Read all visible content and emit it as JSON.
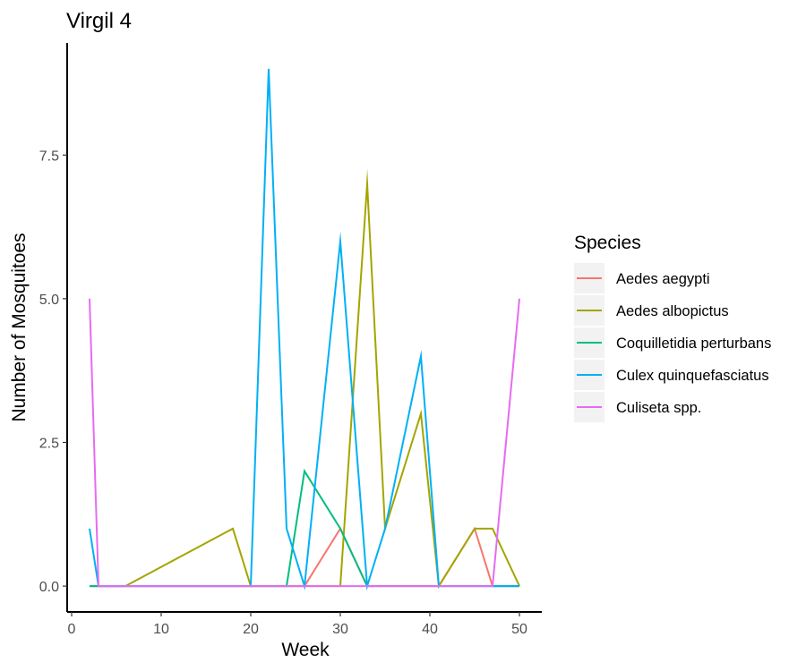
{
  "chart_data": {
    "type": "line",
    "title": "Virgil 4",
    "xlabel": "Week",
    "ylabel": "Number of Mosquitoes",
    "xlim": [
      -0.5,
      52.5
    ],
    "ylim": [
      -0.45,
      9.45
    ],
    "x_ticks": [
      0,
      10,
      20,
      30,
      40,
      50
    ],
    "x_tick_labels": [
      "0",
      "10",
      "20",
      "30",
      "40",
      "50"
    ],
    "y_ticks": [
      0,
      2.5,
      5,
      7.5
    ],
    "y_tick_labels": [
      "0.0",
      "2.5",
      "5.0",
      "7.5"
    ],
    "grid": false,
    "legend": {
      "title": "Species",
      "placement": "right"
    },
    "series": [
      {
        "name": "Aedes aegypti",
        "color": "#F8766D",
        "points": [
          [
            2,
            0
          ],
          [
            3,
            0
          ],
          [
            6,
            0
          ],
          [
            18,
            0
          ],
          [
            20,
            0
          ],
          [
            22,
            0
          ],
          [
            24,
            0
          ],
          [
            26,
            0
          ],
          [
            30,
            1
          ],
          [
            33,
            0
          ],
          [
            35,
            0
          ],
          [
            39,
            0
          ],
          [
            41,
            0
          ],
          [
            45,
            1
          ],
          [
            47,
            0
          ],
          [
            50,
            0
          ]
        ]
      },
      {
        "name": "Aedes albopictus",
        "color": "#A3A500",
        "points": [
          [
            2,
            0
          ],
          [
            3,
            0
          ],
          [
            6,
            0
          ],
          [
            18,
            1
          ],
          [
            20,
            0
          ],
          [
            22,
            0
          ],
          [
            24,
            0
          ],
          [
            26,
            0
          ],
          [
            30,
            0
          ],
          [
            33,
            7
          ],
          [
            35,
            1
          ],
          [
            39,
            3
          ],
          [
            41,
            0
          ],
          [
            45,
            1
          ],
          [
            47,
            1
          ],
          [
            50,
            0
          ]
        ]
      },
      {
        "name": "Coquilletidia perturbans",
        "color": "#00BF7D",
        "points": [
          [
            2,
            0
          ],
          [
            3,
            0
          ],
          [
            6,
            0
          ],
          [
            18,
            0
          ],
          [
            20,
            0
          ],
          [
            22,
            0
          ],
          [
            24,
            0
          ],
          [
            26,
            2
          ],
          [
            30,
            1
          ],
          [
            33,
            0
          ],
          [
            35,
            0
          ],
          [
            39,
            0
          ],
          [
            41,
            0
          ],
          [
            45,
            0
          ],
          [
            47,
            0
          ],
          [
            50,
            0
          ]
        ]
      },
      {
        "name": "Culex quinquefasciatus",
        "color": "#00B0F6",
        "points": [
          [
            2,
            1
          ],
          [
            3,
            0
          ],
          [
            6,
            0
          ],
          [
            18,
            0
          ],
          [
            20,
            0
          ],
          [
            22,
            9
          ],
          [
            24,
            1
          ],
          [
            26,
            0
          ],
          [
            30,
            6
          ],
          [
            33,
            0
          ],
          [
            35,
            1
          ],
          [
            39,
            4
          ],
          [
            41,
            0
          ],
          [
            45,
            0
          ],
          [
            47,
            0
          ],
          [
            50,
            0
          ]
        ]
      },
      {
        "name": "Culiseta spp.",
        "color": "#E76BF3",
        "points": [
          [
            2,
            5
          ],
          [
            3,
            0
          ],
          [
            6,
            0
          ],
          [
            18,
            0
          ],
          [
            20,
            0
          ],
          [
            22,
            0
          ],
          [
            24,
            0
          ],
          [
            26,
            0
          ],
          [
            30,
            0
          ],
          [
            33,
            0
          ],
          [
            35,
            0
          ],
          [
            39,
            0
          ],
          [
            41,
            0
          ],
          [
            45,
            0
          ],
          [
            47,
            0
          ],
          [
            50,
            5
          ]
        ]
      }
    ]
  }
}
